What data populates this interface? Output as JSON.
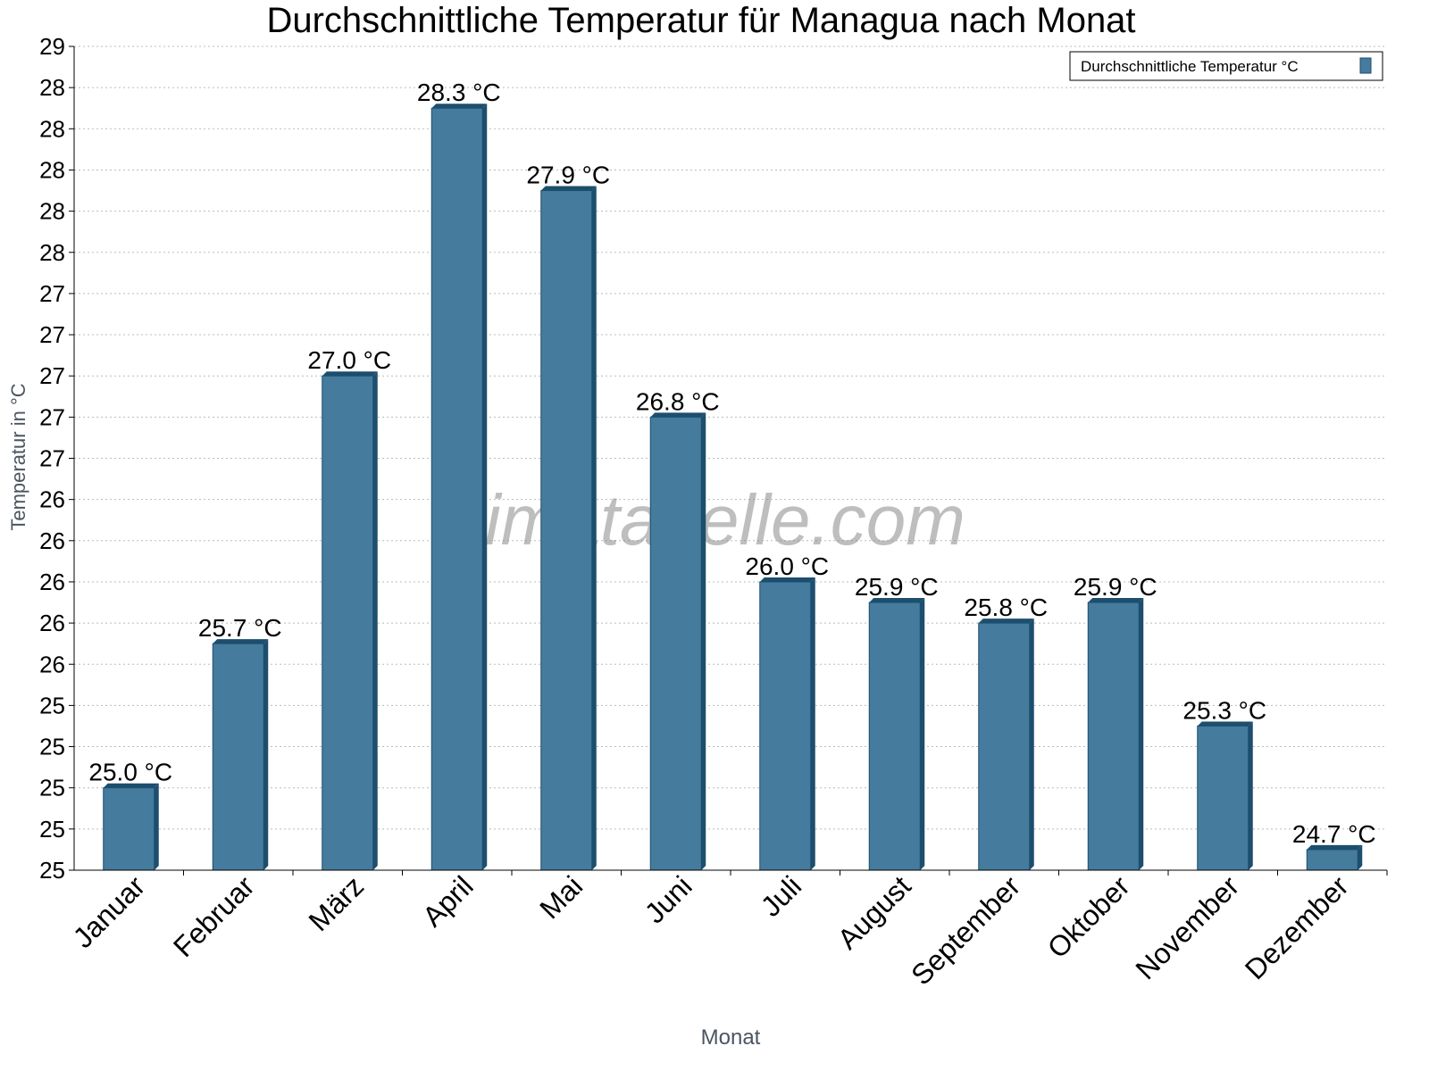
{
  "chart_data": {
    "type": "bar",
    "title": "Durchschnittliche Temperatur für Managua nach Monat",
    "xlabel": "Monat",
    "ylabel": "Temperatur in °C",
    "categories": [
      "Januar",
      "Februar",
      "März",
      "April",
      "Mai",
      "Juni",
      "Juli",
      "August",
      "September",
      "Oktober",
      "November",
      "Dezember"
    ],
    "series": [
      {
        "name": "Durchschnittliche Temperatur °C",
        "values": [
          25.0,
          25.7,
          27.0,
          28.3,
          27.9,
          26.8,
          26.0,
          25.9,
          25.8,
          25.9,
          25.3,
          24.7
        ],
        "labels": [
          "25.0 °C",
          "25.7 °C",
          "27.0 °C",
          "28.3 °C",
          "27.9 °C",
          "26.8 °C",
          "26.0 °C",
          "25.9 °C",
          "25.8 °C",
          "25.9 °C",
          "25.3 °C",
          "24.7 °C"
        ]
      }
    ],
    "ylim": [
      24.6,
      28.6
    ],
    "yticks": [
      24.6,
      24.8,
      25.0,
      25.2,
      25.4,
      25.6,
      25.8,
      26.0,
      26.2,
      26.4,
      26.6,
      26.8,
      27.0,
      27.2,
      27.4,
      27.6,
      27.8,
      28.0,
      28.2,
      28.4,
      28.6
    ],
    "ytick_labels": [
      "25",
      "25",
      "25",
      "25",
      "25",
      "26",
      "26",
      "26",
      "26",
      "26",
      "27",
      "27",
      "27",
      "27",
      "27",
      "28",
      "28",
      "28",
      "28",
      "28",
      "29"
    ],
    "grid": true,
    "legend": "top-right",
    "colors": {
      "bar": "#457b9d",
      "bar_shade": "#1d4e6e"
    },
    "watermark": "klimatabelle.com"
  }
}
